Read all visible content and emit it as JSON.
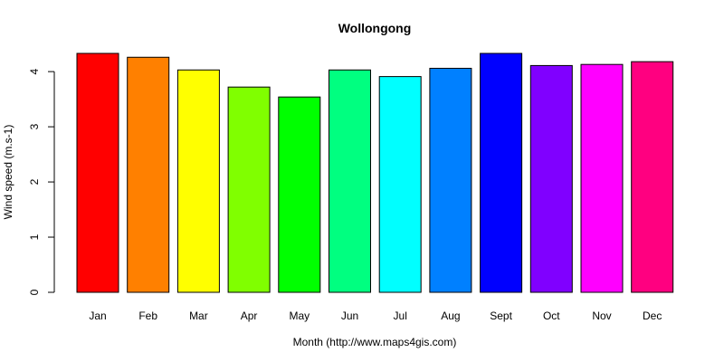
{
  "chart_data": {
    "type": "bar",
    "title": "Wollongong",
    "xlabel": "Month (http://www.maps4gis.com)",
    "ylabel": "Wind speed (m.s-1)",
    "categories": [
      "Jan",
      "Feb",
      "Mar",
      "Apr",
      "May",
      "Jun",
      "Jul",
      "Aug",
      "Sept",
      "Oct",
      "Nov",
      "Dec"
    ],
    "values": [
      4.33,
      4.26,
      4.03,
      3.72,
      3.54,
      4.03,
      3.91,
      4.06,
      4.33,
      4.11,
      4.13,
      4.18
    ],
    "colors": [
      "#FF0000",
      "#FF8000",
      "#FFFF00",
      "#80FF00",
      "#00FF00",
      "#00FF80",
      "#00FFFF",
      "#0080FF",
      "#0000FF",
      "#8000FF",
      "#FF00FF",
      "#FF0080"
    ],
    "yticks": [
      "0",
      "1",
      "2",
      "3",
      "4"
    ],
    "ylim": [
      0,
      4.33
    ],
    "grid": false,
    "legend": "none"
  }
}
